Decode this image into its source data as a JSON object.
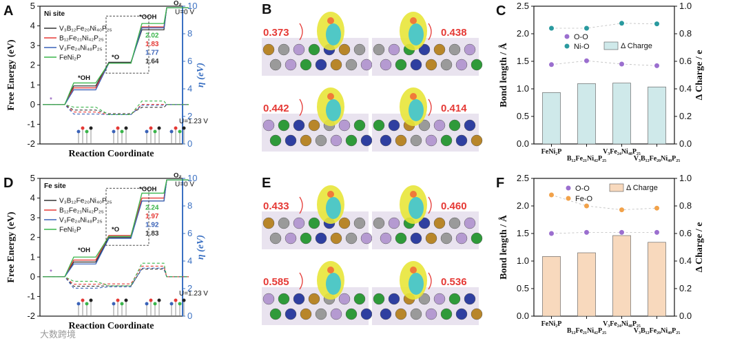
{
  "panel_letters": {
    "a": "A",
    "b": "B",
    "c": "C",
    "d": "D",
    "e": "E",
    "f": "F"
  },
  "watermark": "大数跨境",
  "colors": {
    "V3B12Fe20Ni40P25": "#333333",
    "B12Fe21Ni42P25": "#e53935",
    "V3Fe24Ni48P25": "#3a62b8",
    "FeNi2P": "#39b54a",
    "eta_axis": "#3a70c2",
    "bar_c": "#cfe9ea",
    "bar_f": "#f8d9bd",
    "OO_marker": "#9b6fcf",
    "NiO_marker": "#2a9a9f",
    "FeO_marker": "#f2a24a"
  },
  "chart_data": [
    {
      "panel": "A",
      "type": "line",
      "site_label": "Ni site",
      "xlabel": "Reaction Coordinate",
      "ylabel": "Free Energy (eV)",
      "y2label": "η (eV)",
      "ylim": [
        -2,
        5
      ],
      "y2lim": [
        0,
        10
      ],
      "yticks": [
        "-2",
        "-1",
        "0",
        "1",
        "2",
        "3",
        "4",
        "5"
      ],
      "y2ticks": [
        "0",
        "2",
        "4",
        "6",
        "8",
        "10"
      ],
      "steps": [
        "*",
        "*OH",
        "*O",
        "*OOH",
        "O2"
      ],
      "step_labels": {
        "star": "*",
        "OH": "*OH",
        "O": "*O",
        "OOH": "*OOH",
        "O2": "O₂"
      },
      "condition_u0": "U=0 V",
      "condition_u123": "U=1.23 V",
      "series": [
        {
          "name": "V₃B₁₂Fe₂₀Ni₄₀P₂₅",
          "key": "V3B12Fe20Ni40P25",
          "values": [
            0,
            0.95,
            2.15,
            3.8,
            4.92
          ],
          "overpotential": "1.64"
        },
        {
          "name": "B₁₂Fe₂₁Ni₄₂P₂₅",
          "key": "B12Fe21Ni42P25",
          "values": [
            0,
            0.85,
            2.1,
            3.95,
            4.92
          ],
          "overpotential": "1.83"
        },
        {
          "name": "V₃Fe₂₄Ni₄₈P₂₅",
          "key": "V3Fe24Ni48P25",
          "values": [
            0,
            0.75,
            2.1,
            3.9,
            4.92
          ],
          "overpotential": "1.77"
        },
        {
          "name": "FeNi₂P",
          "key": "FeNi2P",
          "values": [
            0,
            1.1,
            2.1,
            4.12,
            4.92
          ],
          "overpotential": "2.02"
        }
      ],
      "eta_at_u123": {
        "V3B12Fe20Ni40P25": [
          0,
          -0.28,
          -0.46,
          -0.14,
          0
        ],
        "B12Fe21Ni42P25": [
          0,
          -0.38,
          -0.51,
          0.01,
          0
        ],
        "V3Fe24Ni48P25": [
          0,
          -0.48,
          -0.51,
          -0.04,
          0
        ],
        "FeNi2P": [
          0,
          -0.13,
          -0.51,
          0.18,
          0
        ]
      }
    },
    {
      "panel": "D",
      "type": "line",
      "site_label": "Fe site",
      "xlabel": "Reaction Coordinate",
      "ylabel": "Free Energy (eV)",
      "y2label": "η (eV)",
      "ylim": [
        -2,
        5
      ],
      "y2lim": [
        0,
        10
      ],
      "yticks": [
        "-2",
        "-1",
        "0",
        "1",
        "2",
        "3",
        "4",
        "5"
      ],
      "y2ticks": [
        "0",
        "2",
        "4",
        "6",
        "8",
        "10"
      ],
      "steps": [
        "*",
        "*OH",
        "*O",
        "*OOH",
        "O2"
      ],
      "step_labels": {
        "star": "*",
        "OH": "*OH",
        "O": "*O",
        "OOH": "*OOH",
        "O2": "O₂"
      },
      "condition_u0": "U=0 V",
      "condition_u123": "U=1.23 V",
      "series": [
        {
          "name": "V₃B₁₂Fe₂₀Ni₄₀P₂₅",
          "key": "V3B12Fe20Ni40P25",
          "values": [
            0,
            0.75,
            2.0,
            3.85,
            4.92
          ],
          "overpotential": "1.83"
        },
        {
          "name": "B₁₂Fe₂₁Ni₄₂P₂₅",
          "key": "B12Fe21Ni42P25",
          "values": [
            0,
            0.85,
            2.1,
            4.0,
            4.92
          ],
          "overpotential": "1.97"
        },
        {
          "name": "V₃Fe₂₄Ni₄₈P₂₅",
          "key": "V3Fe24Ni48P25",
          "values": [
            0,
            0.65,
            1.95,
            3.85,
            4.92
          ],
          "overpotential": "1.92"
        },
        {
          "name": "FeNi₂P",
          "key": "FeNi2P",
          "values": [
            0,
            1.0,
            2.05,
            4.25,
            4.92
          ],
          "overpotential": "2.24"
        }
      ],
      "eta_at_u123": {
        "V3B12Fe20Ni40P25": [
          0,
          -0.48,
          -0.46,
          0.39,
          0
        ],
        "B12Fe21Ni42P25": [
          0,
          -0.38,
          -0.36,
          0.54,
          0
        ],
        "V3Fe24Ni48P25": [
          0,
          -0.58,
          -0.51,
          0.44,
          0
        ],
        "FeNi2P": [
          0,
          -0.23,
          -0.46,
          0.69,
          0
        ]
      }
    },
    {
      "panel": "C",
      "type": "bar",
      "categories": [
        "FeNi₂P",
        "B₁₂Fe₂₁Ni₄₂P₂₅",
        "V₃Fe₂₄Ni₄₈P₂₅",
        "V₃B₁₂Fe₂₀Ni₄₀P₂₅"
      ],
      "ylabel": "Bond length / Å",
      "y2label": "Δ Charge / e",
      "ylim": [
        0,
        2.5
      ],
      "y2lim": [
        0,
        1.0
      ],
      "yticks": [
        "0.0",
        "0.5",
        "1.0",
        "1.5",
        "2.0",
        "2.5"
      ],
      "y2ticks": [
        "0.0",
        "0.2",
        "0.4",
        "0.6",
        "0.8",
        "1.0"
      ],
      "bars": {
        "name": "Δ Charge",
        "values": [
          0.373,
          0.438,
          0.442,
          0.414
        ]
      },
      "series": [
        {
          "name": "O-O",
          "values": [
            1.44,
            1.51,
            1.45,
            1.42
          ]
        },
        {
          "name": "Ni-O",
          "values": [
            2.1,
            2.1,
            2.19,
            2.18
          ]
        }
      ]
    },
    {
      "panel": "F",
      "type": "bar",
      "categories": [
        "FeNi₂P",
        "B₁₂Fe₂₁Ni₄₂P₂₅",
        "V₃Fe₂₄Ni₄₈P₂₅",
        "V₃B₁₂Fe₂₀Ni₄₀P₂₅"
      ],
      "ylabel": "Bond length / Å",
      "y2label": "Δ Charge / e",
      "ylim": [
        0,
        2.5
      ],
      "y2lim": [
        0,
        1.0
      ],
      "yticks": [
        "0.0",
        "0.5",
        "1.0",
        "1.5",
        "2.0",
        "2.5"
      ],
      "y2ticks": [
        "0.0",
        "0.2",
        "0.4",
        "0.6",
        "0.8",
        "1.0"
      ],
      "bars": {
        "name": "Δ Charge",
        "values": [
          0.433,
          0.46,
          0.585,
          0.536
        ]
      },
      "series": [
        {
          "name": "O-O",
          "values": [
            1.5,
            1.52,
            1.52,
            1.52
          ]
        },
        {
          "name": "Fe-O",
          "values": [
            2.2,
            2.0,
            1.93,
            1.96
          ]
        }
      ]
    }
  ],
  "panel_b_values": [
    "0.373",
    "0.438",
    "0.442",
    "0.414"
  ],
  "panel_e_values": [
    "0.433",
    "0.460",
    "0.585",
    "0.536"
  ]
}
